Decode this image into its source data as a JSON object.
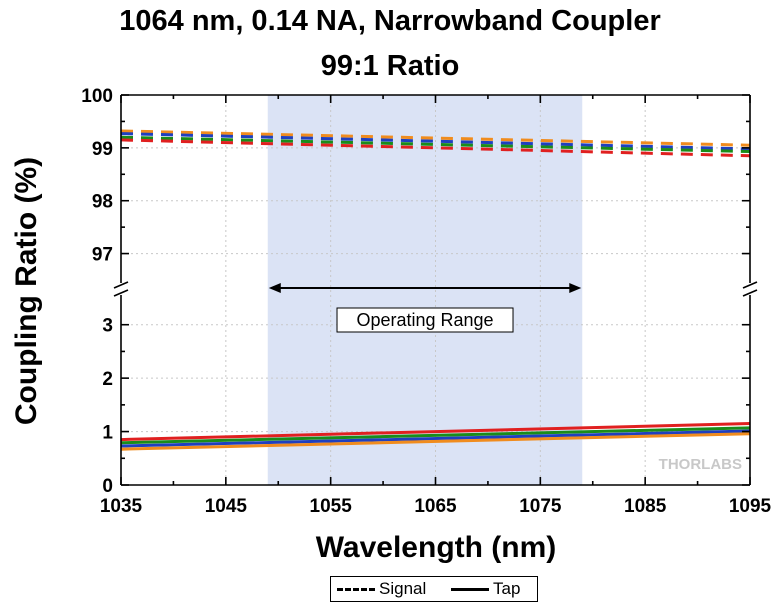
{
  "chart_data": {
    "type": "line",
    "title": "1064 nm, 0.14 NA, Narrowband Coupler",
    "subtitle": "99:1 Ratio",
    "xlabel": "Wavelength (nm)",
    "ylabel": "Coupling Ratio (%)",
    "xlim": [
      1035,
      1095
    ],
    "x_ticks": [
      "1035",
      "1045",
      "1055",
      "1065",
      "1075",
      "1085",
      "1095"
    ],
    "y_upper_lim": [
      96.5,
      100
    ],
    "y_upper_ticks": [
      "97",
      "98",
      "99",
      "100"
    ],
    "y_lower_lim": [
      0,
      3.5
    ],
    "y_lower_ticks": [
      "0",
      "1",
      "2",
      "3"
    ],
    "grid": true,
    "operating_range": [
      1049,
      1079
    ],
    "operating_range_label": "Operating Range",
    "watermark": "THORLABS",
    "legend": {
      "signal": "Signal",
      "tap": "Tap"
    },
    "x": [
      1035,
      1095
    ],
    "series": [
      {
        "group": "signal",
        "color": "#f08c1e",
        "values": [
          99.32,
          99.05
        ]
      },
      {
        "group": "signal",
        "color": "#1f3fbf",
        "values": [
          99.27,
          98.98
        ]
      },
      {
        "group": "signal",
        "color": "#1a8c1a",
        "values": [
          99.2,
          98.93
        ]
      },
      {
        "group": "signal",
        "color": "#e02020",
        "values": [
          99.15,
          98.85
        ]
      },
      {
        "group": "tap",
        "color": "#e02020",
        "values": [
          0.85,
          1.15
        ]
      },
      {
        "group": "tap",
        "color": "#1a8c1a",
        "values": [
          0.79,
          1.07
        ]
      },
      {
        "group": "tap",
        "color": "#1f3fbf",
        "values": [
          0.73,
          1.01
        ]
      },
      {
        "group": "tap",
        "color": "#f08c1e",
        "values": [
          0.67,
          0.96
        ]
      }
    ]
  }
}
